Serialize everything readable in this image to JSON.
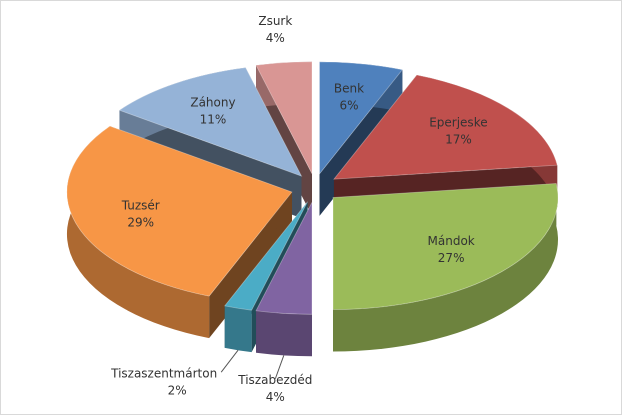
{
  "chart_data": {
    "type": "pie",
    "categories": [
      "Benk",
      "Eperjeske",
      "Mándok",
      "Tiszabezdéd",
      "Tiszaszentmárton",
      "Tuzsér",
      "Záhony",
      "Zsurk"
    ],
    "values": [
      6,
      17,
      27,
      4,
      2,
      29,
      11,
      4
    ],
    "value_labels": [
      "6%",
      "17%",
      "27%",
      "4%",
      "2%",
      "29%",
      "11%",
      "4%"
    ],
    "colors": [
      "#4f81bd",
      "#c0504d",
      "#9bbb59",
      "#8064a2",
      "#4bacc6",
      "#f79646",
      "#95b3d7",
      "#d99694"
    ]
  }
}
